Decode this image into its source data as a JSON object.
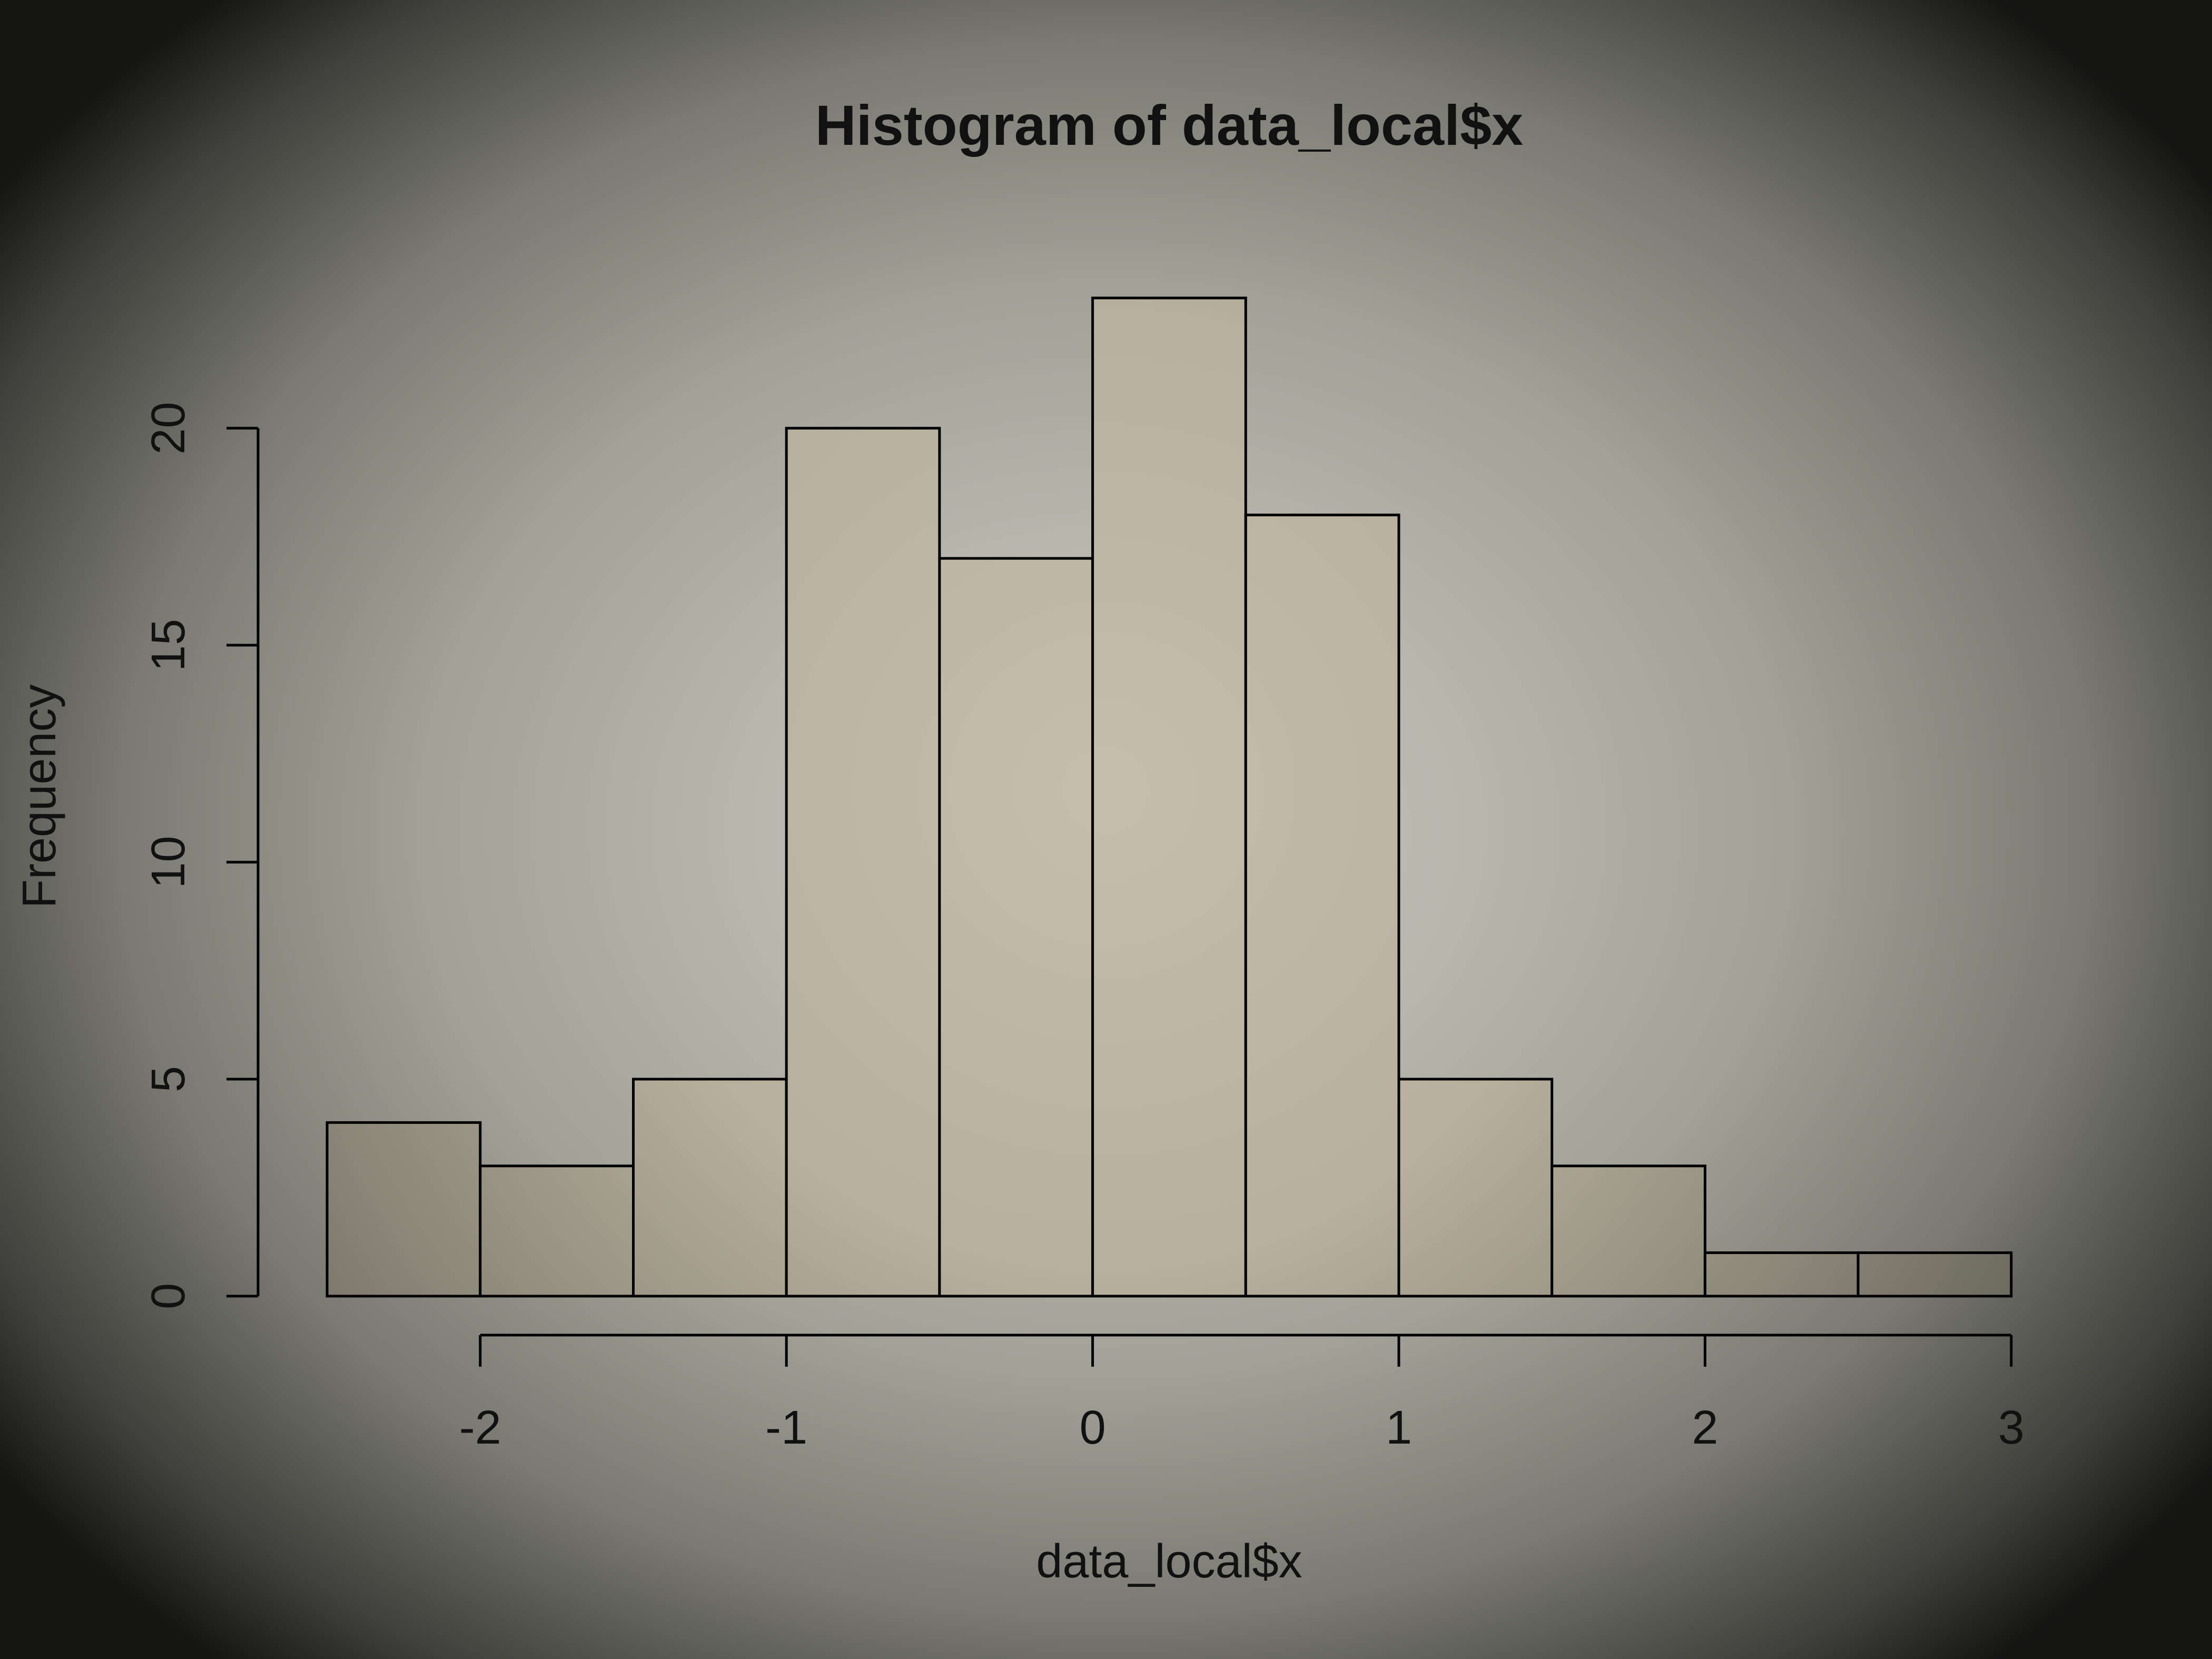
{
  "chart_data": {
    "type": "bar",
    "title": "Histogram of data_local$x",
    "xlabel": "data_local$x",
    "ylabel": "Frequency",
    "bin_edges": [
      -2.5,
      -2.0,
      -1.5,
      -1.0,
      -0.5,
      0.0,
      0.5,
      1.0,
      1.5,
      2.0,
      2.5,
      3.0
    ],
    "values": [
      4,
      3,
      5,
      20,
      17,
      23,
      18,
      5,
      3,
      1,
      1
    ],
    "xlim": [
      -2.5,
      3.0
    ],
    "ylim": [
      0,
      23
    ],
    "x_ticks": [
      "-2",
      "-1",
      "0",
      "1",
      "2",
      "3"
    ],
    "y_ticks": [
      "0",
      "5",
      "10",
      "15",
      "20"
    ],
    "grid": false,
    "colors": {
      "bar_fill": "#bdb6a2",
      "bar_stroke": "#000000"
    }
  }
}
